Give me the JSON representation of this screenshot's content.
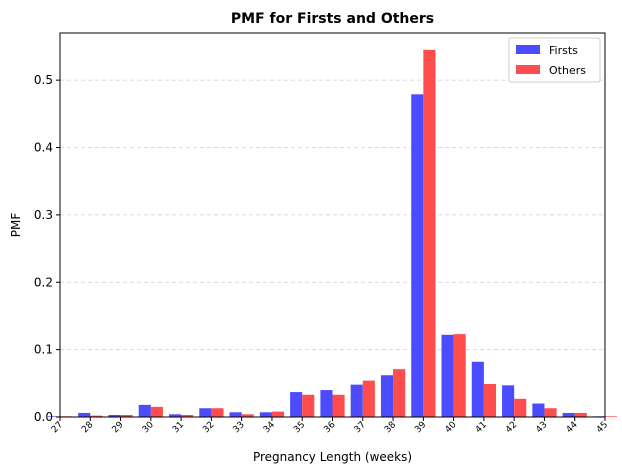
{
  "chart_data": {
    "type": "bar",
    "title": "PMF for Firsts and Others",
    "xlabel": "Pregnancy Length (weeks)",
    "ylabel": "PMF",
    "categories": [
      "27",
      "28",
      "29",
      "30",
      "31",
      "32",
      "33",
      "34",
      "35",
      "36",
      "37",
      "38",
      "39",
      "40",
      "41",
      "42",
      "43",
      "44",
      "45"
    ],
    "x_range": [
      27,
      45
    ],
    "ylim": [
      0,
      0.57
    ],
    "yticks": [
      "0.0",
      "0.1",
      "0.2",
      "0.3",
      "0.4",
      "0.5"
    ],
    "ytick_values": [
      0,
      0.1,
      0.2,
      0.3,
      0.4,
      0.5
    ],
    "grid": "horizontal, dashed",
    "legend": "top-right",
    "series": [
      {
        "name": "Firsts",
        "color": "#4c4cff",
        "values": [
          0.001,
          0.006,
          0.003,
          0.018,
          0.004,
          0.013,
          0.007,
          0.007,
          0.037,
          0.04,
          0.048,
          0.062,
          0.479,
          0.122,
          0.082,
          0.047,
          0.02,
          0.006,
          0.001
        ]
      },
      {
        "name": "Others",
        "color": "#ff4c4c",
        "values": [
          0.001,
          0.002,
          0.003,
          0.015,
          0.003,
          0.013,
          0.004,
          0.008,
          0.033,
          0.033,
          0.054,
          0.071,
          0.545,
          0.123,
          0.049,
          0.027,
          0.013,
          0.006,
          0.001
        ]
      }
    ]
  }
}
